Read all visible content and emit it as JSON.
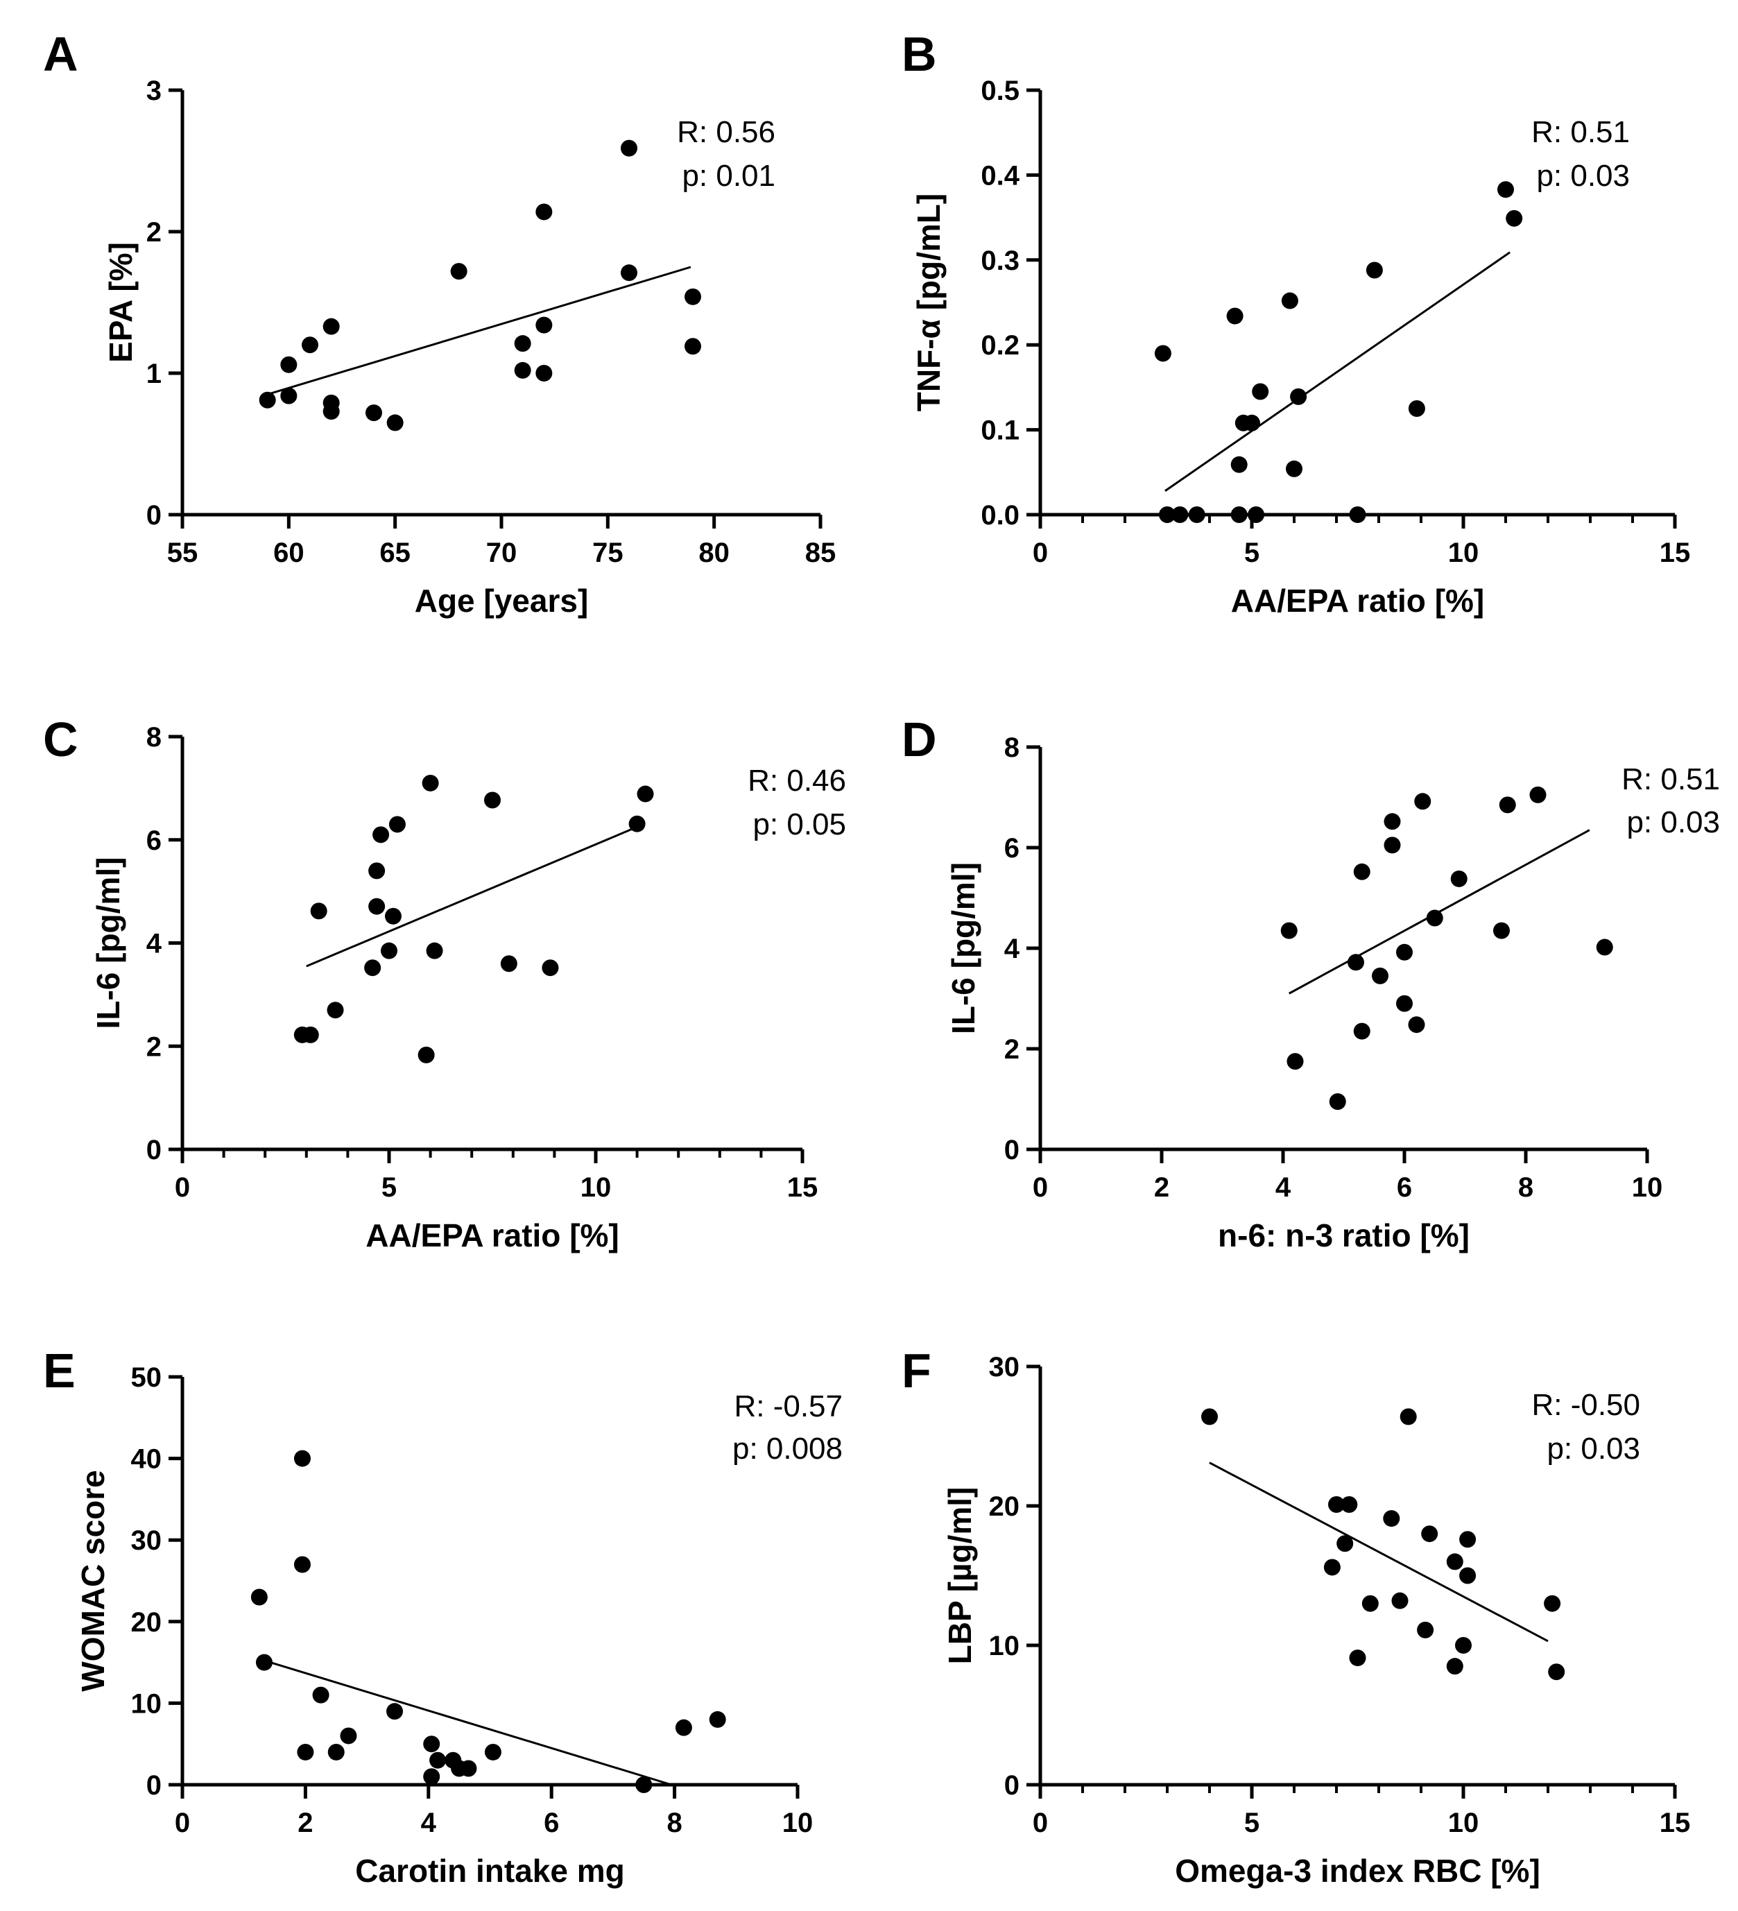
{
  "chart_data": [
    {
      "type": "scatter",
      "panel": "A",
      "xlabel": "Age [years]",
      "ylabel": "EPA [%]",
      "xlim": [
        55,
        85
      ],
      "ylim": [
        0,
        3
      ],
      "xticks": [
        55,
        60,
        65,
        70,
        75,
        80,
        85
      ],
      "yticks": [
        0,
        1,
        2,
        3
      ],
      "minor_x": 0,
      "minor_y": 0,
      "points": [
        [
          59,
          0.81
        ],
        [
          60,
          1.06
        ],
        [
          60,
          0.84
        ],
        [
          61,
          1.2
        ],
        [
          62,
          1.33
        ],
        [
          62,
          0.79
        ],
        [
          62,
          0.73
        ],
        [
          64,
          0.72
        ],
        [
          65,
          0.65
        ],
        [
          68,
          1.72
        ],
        [
          71,
          1.21
        ],
        [
          71,
          1.02
        ],
        [
          72,
          2.14
        ],
        [
          72,
          1.34
        ],
        [
          72,
          1.0
        ],
        [
          76,
          2.59
        ],
        [
          76,
          1.71
        ],
        [
          79,
          1.54
        ],
        [
          79,
          1.19
        ]
      ],
      "fit": [
        [
          59,
          0.85
        ],
        [
          78.9,
          1.75
        ]
      ],
      "stats": {
        "r": "R: 0.56",
        "p": "p: 0.01"
      }
    },
    {
      "type": "scatter",
      "panel": "B",
      "xlabel": "AA/EPA ratio [%]",
      "ylabel": "TNF-α [pg/mL]",
      "xlim": [
        0,
        15
      ],
      "ylim": [
        0,
        0.5
      ],
      "xticks": [
        0,
        5,
        10,
        15
      ],
      "yticks": [
        0.0,
        0.1,
        0.2,
        0.3,
        0.4,
        0.5
      ],
      "ytick_labels": [
        "0.0",
        "0.1",
        "0.2",
        "0.3",
        "0.4",
        "0.5"
      ],
      "minor_x": 4,
      "minor_y": 0,
      "points": [
        [
          2.9,
          0.19
        ],
        [
          3.0,
          0.0
        ],
        [
          3.3,
          0.0
        ],
        [
          3.7,
          0.0
        ],
        [
          4.6,
          0.234
        ],
        [
          4.7,
          0.0
        ],
        [
          4.7,
          0.059
        ],
        [
          4.8,
          0.108
        ],
        [
          5.0,
          0.108
        ],
        [
          5.1,
          0.0
        ],
        [
          5.2,
          0.145
        ],
        [
          5.9,
          0.252
        ],
        [
          6.0,
          0.054
        ],
        [
          6.1,
          0.139
        ],
        [
          7.5,
          0.0
        ],
        [
          7.9,
          0.288
        ],
        [
          8.9,
          0.125
        ],
        [
          11.0,
          0.383
        ],
        [
          11.2,
          0.349
        ]
      ],
      "fit": [
        [
          2.95,
          0.028
        ],
        [
          11.1,
          0.309
        ]
      ],
      "stats": {
        "r": "R: 0.51",
        "p": "p: 0.03"
      }
    },
    {
      "type": "scatter",
      "panel": "C",
      "xlabel": "AA/EPA ratio [%]",
      "ylabel": "IL-6 [pg/ml]",
      "xlim": [
        0,
        15
      ],
      "ylim": [
        0,
        8
      ],
      "xticks": [
        0,
        5,
        10,
        15
      ],
      "yticks": [
        0,
        2,
        4,
        6,
        8
      ],
      "minor_x": 4,
      "minor_y": 0,
      "points": [
        [
          2.9,
          2.22
        ],
        [
          3.1,
          2.22
        ],
        [
          3.3,
          4.62
        ],
        [
          3.7,
          2.7
        ],
        [
          4.6,
          3.52
        ],
        [
          4.7,
          5.4
        ],
        [
          4.7,
          4.71
        ],
        [
          4.8,
          6.1
        ],
        [
          5.0,
          3.85
        ],
        [
          5.1,
          4.52
        ],
        [
          5.2,
          6.3
        ],
        [
          5.9,
          1.83
        ],
        [
          6.0,
          7.1
        ],
        [
          6.1,
          3.85
        ],
        [
          7.5,
          6.77
        ],
        [
          7.9,
          3.6
        ],
        [
          8.9,
          3.52
        ],
        [
          11.0,
          6.31
        ],
        [
          11.2,
          6.89
        ]
      ],
      "fit": [
        [
          3.0,
          3.55
        ],
        [
          11.0,
          6.25
        ]
      ],
      "stats": {
        "r": "R: 0.46",
        "p": "p: 0.05"
      }
    },
    {
      "type": "scatter",
      "panel": "D",
      "xlabel": "n-6: n-3 ratio [%]",
      "ylabel": "IL-6 [pg/ml]",
      "xlim": [
        0,
        10
      ],
      "ylim": [
        0,
        8
      ],
      "xticks": [
        0,
        2,
        4,
        6,
        8,
        10
      ],
      "yticks": [
        0,
        2,
        4,
        6,
        8
      ],
      "minor_x": 0,
      "minor_y": 0,
      "points": [
        [
          4.1,
          4.35
        ],
        [
          4.2,
          1.75
        ],
        [
          4.9,
          0.95
        ],
        [
          5.2,
          3.72
        ],
        [
          5.3,
          5.52
        ],
        [
          5.3,
          2.35
        ],
        [
          5.6,
          3.45
        ],
        [
          5.8,
          6.52
        ],
        [
          5.8,
          6.05
        ],
        [
          6.0,
          2.9
        ],
        [
          6.0,
          3.92
        ],
        [
          6.2,
          2.48
        ],
        [
          6.3,
          6.92
        ],
        [
          6.9,
          5.38
        ],
        [
          6.5,
          4.6
        ],
        [
          7.6,
          4.35
        ],
        [
          7.7,
          6.85
        ],
        [
          8.2,
          7.05
        ],
        [
          9.3,
          4.02
        ]
      ],
      "fit": [
        [
          4.1,
          3.1
        ],
        [
          9.05,
          6.35
        ]
      ],
      "stats": {
        "r": "R: 0.51",
        "p": "p: 0.03"
      }
    },
    {
      "type": "scatter",
      "panel": "E",
      "xlabel": "Carotin intake mg",
      "ylabel": "WOMAC score",
      "xlim": [
        0,
        10
      ],
      "ylim": [
        0,
        50
      ],
      "xticks": [
        0,
        2,
        4,
        6,
        8,
        10
      ],
      "yticks": [
        0,
        10,
        20,
        30,
        40,
        50
      ],
      "minor_x": 0,
      "minor_y": 0,
      "points": [
        [
          1.25,
          23
        ],
        [
          1.33,
          15
        ],
        [
          1.95,
          40
        ],
        [
          1.95,
          27
        ],
        [
          2.0,
          4
        ],
        [
          2.25,
          11
        ],
        [
          2.5,
          4
        ],
        [
          2.7,
          6
        ],
        [
          3.45,
          9
        ],
        [
          4.05,
          5
        ],
        [
          4.05,
          1
        ],
        [
          4.15,
          3
        ],
        [
          4.4,
          3
        ],
        [
          4.5,
          2
        ],
        [
          4.65,
          2
        ],
        [
          5.05,
          4
        ],
        [
          7.5,
          0
        ],
        [
          8.15,
          7
        ],
        [
          8.7,
          8
        ]
      ],
      "fit": [
        [
          1.3,
          15.3
        ],
        [
          7.95,
          0
        ]
      ],
      "stats": {
        "r": "R: -0.57",
        "p": "p: 0.008"
      }
    },
    {
      "type": "scatter",
      "panel": "F",
      "xlabel": "Omega-3 index RBC [%]",
      "ylabel": "LBP [µg/ml]",
      "xlim": [
        0,
        15
      ],
      "ylim": [
        0,
        30
      ],
      "xticks": [
        0,
        5,
        10,
        15
      ],
      "yticks": [
        0,
        10,
        20,
        30
      ],
      "minor_x": 4,
      "minor_y": 0,
      "points": [
        [
          4.0,
          26.4
        ],
        [
          6.9,
          15.6
        ],
        [
          7.0,
          20.1
        ],
        [
          7.2,
          17.3
        ],
        [
          7.3,
          20.1
        ],
        [
          7.5,
          9.1
        ],
        [
          7.8,
          13.0
        ],
        [
          8.3,
          19.1
        ],
        [
          8.5,
          13.2
        ],
        [
          8.7,
          26.4
        ],
        [
          9.1,
          11.1
        ],
        [
          9.2,
          18.0
        ],
        [
          9.8,
          8.5
        ],
        [
          9.8,
          16.0
        ],
        [
          10.0,
          10.0
        ],
        [
          10.1,
          15.0
        ],
        [
          10.1,
          17.6
        ],
        [
          12.1,
          13.0
        ],
        [
          12.2,
          8.1
        ]
      ],
      "fit": [
        [
          4.0,
          23.1
        ],
        [
          12.0,
          10.3
        ]
      ],
      "stats": {
        "r": "R: -0.50",
        "p": "p: 0.03"
      }
    }
  ]
}
